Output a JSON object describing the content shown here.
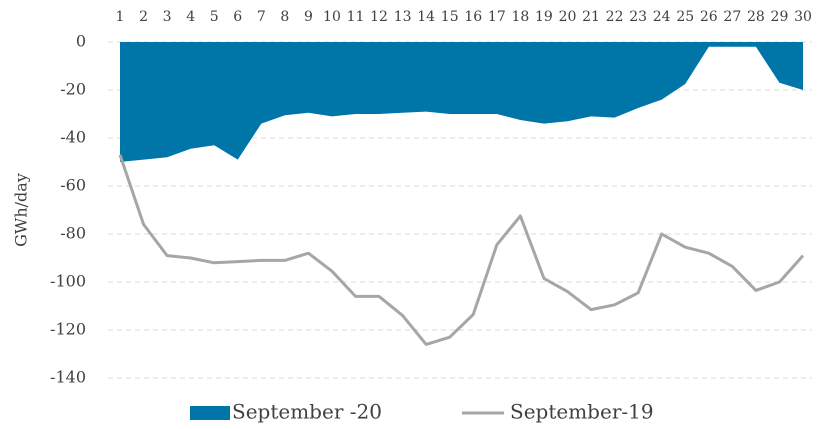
{
  "chart_data": {
    "type": "area_line",
    "y_label": "GWh/day",
    "categories": [
      "1",
      "2",
      "3",
      "4",
      "5",
      "6",
      "7",
      "8",
      "9",
      "10",
      "11",
      "12",
      "13",
      "14",
      "15",
      "16",
      "17",
      "18",
      "19",
      "20",
      "21",
      "22",
      "23",
      "24",
      "25",
      "26",
      "27",
      "28",
      "29",
      "30"
    ],
    "series": [
      {
        "name": "September -20",
        "color": "#0076a8",
        "kind": "area",
        "values": [
          -50,
          -49,
          -48,
          -44.5,
          -43,
          -49,
          -34,
          -30.5,
          -29.5,
          -31,
          -30,
          -30,
          -29.5,
          -29,
          -30,
          -30,
          -30,
          -32.5,
          -34,
          -33,
          -31,
          -31.5,
          -27.5,
          -24,
          -17.5,
          -2,
          -2,
          -2,
          -17,
          -20
        ]
      },
      {
        "name": "September-19",
        "color": "#a6a6a6",
        "kind": "line",
        "values": [
          -47,
          -76,
          -89,
          -90,
          -92,
          -91.5,
          -91,
          -91,
          -88,
          -95.5,
          -106,
          -106,
          -114,
          -126,
          -123,
          -113.5,
          -84.5,
          -72.5,
          -98.5,
          -104,
          -111.5,
          -109.5,
          -104.5,
          -80,
          -85.5,
          -88,
          -93.5,
          -103.5,
          -100,
          -89
        ]
      }
    ],
    "ylim": [
      -140,
      0
    ],
    "yticks": [
      0,
      -20,
      -40,
      -60,
      -80,
      -100,
      -120,
      -140
    ],
    "grid": true,
    "legend": "bottom"
  }
}
